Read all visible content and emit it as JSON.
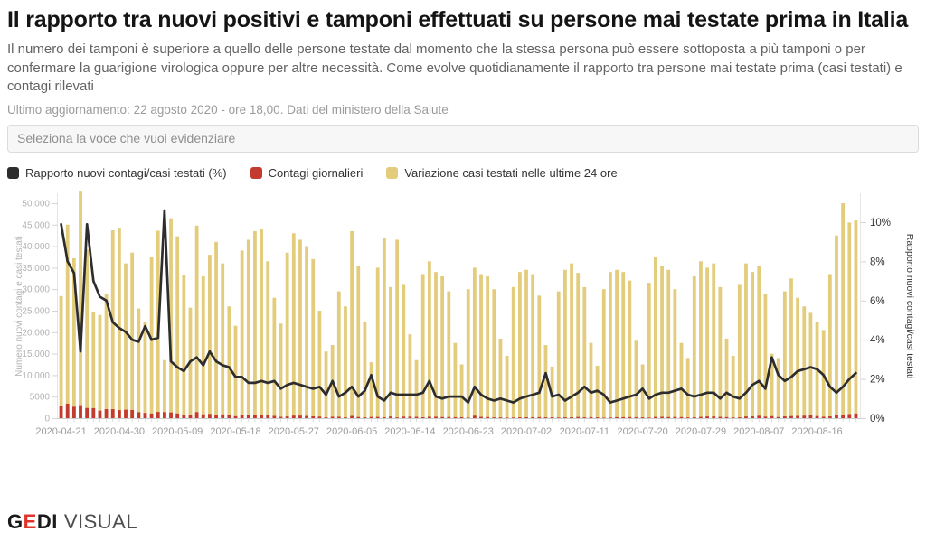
{
  "header": {
    "title": "Il rapporto tra nuovi positivi e tamponi effettuati su persone mai testate prima in Italia",
    "subtitle": "Il numero dei tamponi è superiore a quello delle persone testate dal momento che la stessa persona può essere sottoposta a più tamponi o per confermare la guarigione virologica oppure per altre necessità. Come evolve quotidianamente il rapporto tra persone mai testate prima (casi testati) e contagi rilevati",
    "update_line": "Ultimo aggiornamento: 22 agosto 2020 - ore 18,00. Dati del ministero della Salute"
  },
  "selector": {
    "placeholder": "Seleziona la voce che vuoi evidenziare"
  },
  "legend": [
    {
      "label": "Rapporto nuovi contagi/casi testati (%)",
      "color": "#2d2d2d"
    },
    {
      "label": "Contagi giornalieri",
      "color": "#c23b2e"
    },
    {
      "label": "Variazione casi testati nelle ultime 24 ore",
      "color": "#e3cc7c"
    }
  ],
  "footer": {
    "logo_gedi_g": "G",
    "logo_gedi_e": "E",
    "logo_gedi_di": "DI",
    "logo_visual": "VISUAL"
  },
  "chart_data": {
    "type": "bar+line combo, daily datetime x-axis",
    "title": "",
    "grid": "off",
    "legend_position": "top",
    "x_tick_labels": [
      "2020-04-21",
      "2020-04-30",
      "2020-05-09",
      "2020-05-18",
      "2020-05-27",
      "2020-06-05",
      "2020-06-14",
      "2020-06-23",
      "2020-07-02",
      "2020-07-11",
      "2020-07-20",
      "2020-07-29",
      "2020-08-07",
      "2020-08-16"
    ],
    "left_axis": {
      "label": "Numero nuovi contagi e casi testati",
      "tick_values": [
        0,
        5000,
        10000,
        15000,
        20000,
        25000,
        30000,
        35000,
        40000,
        45000,
        50000
      ],
      "tick_labels": [
        "0",
        "5000",
        "10.000",
        "15.000",
        "20.000",
        "25.000",
        "30.000",
        "35.000",
        "40.000",
        "45.000",
        "50.000"
      ],
      "range": [
        0,
        52500
      ]
    },
    "right_axis": {
      "label": "Rapporto nuovi contagi/casi testati",
      "tick_values": [
        0,
        2,
        4,
        6,
        8,
        10
      ],
      "tick_labels": [
        "0%",
        "2%",
        "4%",
        "6%",
        "8%",
        "10%"
      ],
      "range": [
        0,
        11.5
      ]
    },
    "dates": [
      "2020-04-21",
      "2020-04-22",
      "2020-04-23",
      "2020-04-24",
      "2020-04-25",
      "2020-04-26",
      "2020-04-27",
      "2020-04-28",
      "2020-04-29",
      "2020-04-30",
      "2020-05-01",
      "2020-05-02",
      "2020-05-03",
      "2020-05-04",
      "2020-05-05",
      "2020-05-06",
      "2020-05-07",
      "2020-05-08",
      "2020-05-09",
      "2020-05-10",
      "2020-05-11",
      "2020-05-12",
      "2020-05-13",
      "2020-05-14",
      "2020-05-15",
      "2020-05-16",
      "2020-05-17",
      "2020-05-18",
      "2020-05-19",
      "2020-05-20",
      "2020-05-21",
      "2020-05-22",
      "2020-05-23",
      "2020-05-24",
      "2020-05-25",
      "2020-05-26",
      "2020-05-27",
      "2020-05-28",
      "2020-05-29",
      "2020-05-30",
      "2020-05-31",
      "2020-06-01",
      "2020-06-02",
      "2020-06-03",
      "2020-06-04",
      "2020-06-05",
      "2020-06-06",
      "2020-06-07",
      "2020-06-08",
      "2020-06-09",
      "2020-06-10",
      "2020-06-11",
      "2020-06-12",
      "2020-06-13",
      "2020-06-14",
      "2020-06-15",
      "2020-06-16",
      "2020-06-17",
      "2020-06-18",
      "2020-06-19",
      "2020-06-20",
      "2020-06-21",
      "2020-06-22",
      "2020-06-23",
      "2020-06-24",
      "2020-06-25",
      "2020-06-26",
      "2020-06-27",
      "2020-06-28",
      "2020-06-29",
      "2020-06-30",
      "2020-07-01",
      "2020-07-02",
      "2020-07-03",
      "2020-07-04",
      "2020-07-05",
      "2020-07-06",
      "2020-07-07",
      "2020-07-08",
      "2020-07-09",
      "2020-07-10",
      "2020-07-11",
      "2020-07-12",
      "2020-07-13",
      "2020-07-14",
      "2020-07-15",
      "2020-07-16",
      "2020-07-17",
      "2020-07-18",
      "2020-07-19",
      "2020-07-20",
      "2020-07-21",
      "2020-07-22",
      "2020-07-23",
      "2020-07-24",
      "2020-07-25",
      "2020-07-26",
      "2020-07-27",
      "2020-07-28",
      "2020-07-29",
      "2020-07-30",
      "2020-07-31",
      "2020-08-01",
      "2020-08-02",
      "2020-08-03",
      "2020-08-04",
      "2020-08-05",
      "2020-08-06",
      "2020-08-07",
      "2020-08-08",
      "2020-08-09",
      "2020-08-10",
      "2020-08-11",
      "2020-08-12",
      "2020-08-13",
      "2020-08-14",
      "2020-08-15",
      "2020-08-16",
      "2020-08-17",
      "2020-08-18",
      "2020-08-19",
      "2020-08-20",
      "2020-08-21",
      "2020-08-22"
    ],
    "series": [
      {
        "name": "Variazione casi testati nelle ultime 24 ore",
        "type": "bar",
        "axis": "left",
        "color": "#e3cc7c",
        "values": [
          28400,
          45000,
          37200,
          52700,
          39200,
          24800,
          24000,
          29000,
          43700,
          44300,
          36000,
          38500,
          25500,
          22500,
          37500,
          43600,
          13500,
          46500,
          42300,
          33300,
          25700,
          44800,
          33000,
          38000,
          41000,
          36000,
          26000,
          21500,
          39000,
          41500,
          43500,
          44000,
          36500,
          28000,
          22000,
          38500,
          43000,
          41500,
          40000,
          37000,
          25000,
          15500,
          17000,
          29500,
          26000,
          43500,
          35500,
          22500,
          13000,
          35000,
          42000,
          30500,
          41500,
          31000,
          19500,
          13500,
          33500,
          36500,
          34000,
          33000,
          29500,
          17500,
          12500,
          30000,
          35000,
          33500,
          33000,
          30000,
          18500,
          14500,
          30500,
          34000,
          34500,
          33500,
          28500,
          17000,
          12000,
          29500,
          34500,
          36000,
          33800,
          30500,
          17500,
          12200,
          30000,
          34000,
          34500,
          34000,
          32000,
          18000,
          12500,
          31500,
          37500,
          35500,
          34500,
          30000,
          17500,
          14000,
          33000,
          36500,
          35000,
          36000,
          30500,
          18500,
          14500,
          31000,
          36000,
          34000,
          35500,
          29000,
          15000,
          14000,
          29500,
          32500,
          28000,
          26000,
          24500,
          22500,
          20500,
          33500,
          42500,
          50000,
          45500,
          46000
        ]
      },
      {
        "name": "Contagi giornalieri",
        "type": "bar",
        "axis": "left",
        "color": "#c23b2e",
        "values": [
          2729,
          3370,
          2646,
          3021,
          2357,
          2324,
          1739,
          2091,
          2086,
          1872,
          1965,
          1900,
          1389,
          1221,
          1075,
          1444,
          1401,
          1327,
          1083,
          802,
          744,
          1402,
          888,
          992,
          789,
          875,
          675,
          451,
          813,
          665,
          642,
          652,
          669,
          531,
          300,
          397,
          584,
          593,
          516,
          416,
          355,
          178,
          318,
          321,
          177,
          518,
          270,
          197,
          280,
          283,
          202,
          379,
          163,
          346,
          338,
          301,
          210,
          329,
          331,
          251,
          264,
          224,
          221,
          113,
          577,
          296,
          255,
          175,
          174,
          126,
          142,
          187,
          201,
          223,
          235,
          192,
          208,
          137,
          193,
          214,
          276,
          188,
          234,
          169,
          114,
          162,
          230,
          233,
          249,
          219,
          190,
          128,
          282,
          306,
          252,
          275,
          255,
          168,
          212,
          289,
          386,
          379,
          295,
          239,
          159,
          190,
          384,
          402,
          552,
          347,
          463,
          259,
          412,
          481,
          522,
          574,
          629,
          479,
          320,
          403,
          642,
          845,
          947,
          1071
        ]
      },
      {
        "name": "Rapporto nuovi contagi/casi testati (%)",
        "type": "line",
        "axis": "right",
        "color": "#2d2d2d",
        "values": [
          9.9,
          8.0,
          7.4,
          3.4,
          9.9,
          7.0,
          6.2,
          6.0,
          4.9,
          4.6,
          4.4,
          4.0,
          3.9,
          4.7,
          4.0,
          4.1,
          10.6,
          2.9,
          2.6,
          2.4,
          2.9,
          3.1,
          2.7,
          3.4,
          2.9,
          2.7,
          2.6,
          2.1,
          2.1,
          1.8,
          1.8,
          1.9,
          1.8,
          1.9,
          1.5,
          1.7,
          1.8,
          1.7,
          1.6,
          1.5,
          1.6,
          1.2,
          1.9,
          1.1,
          1.3,
          1.6,
          1.1,
          1.4,
          2.2,
          1.1,
          0.9,
          1.3,
          1.2,
          1.2,
          1.2,
          1.2,
          1.3,
          1.9,
          1.1,
          1.0,
          1.1,
          1.1,
          1.1,
          0.8,
          1.6,
          1.2,
          1.0,
          0.9,
          1.0,
          0.9,
          0.8,
          1.0,
          1.1,
          1.2,
          1.3,
          2.3,
          1.1,
          1.2,
          0.9,
          1.1,
          1.3,
          1.6,
          1.3,
          1.4,
          1.2,
          0.8,
          0.9,
          1.0,
          1.1,
          1.2,
          1.5,
          1.0,
          1.2,
          1.3,
          1.3,
          1.4,
          1.5,
          1.2,
          1.1,
          1.2,
          1.3,
          1.3,
          1.0,
          1.3,
          1.1,
          1.0,
          1.3,
          1.7,
          1.9,
          1.5,
          3.1,
          2.2,
          1.9,
          2.1,
          2.4,
          2.5,
          2.6,
          2.5,
          2.2,
          1.6,
          1.3,
          1.6,
          2.0,
          2.3
        ]
      }
    ]
  }
}
